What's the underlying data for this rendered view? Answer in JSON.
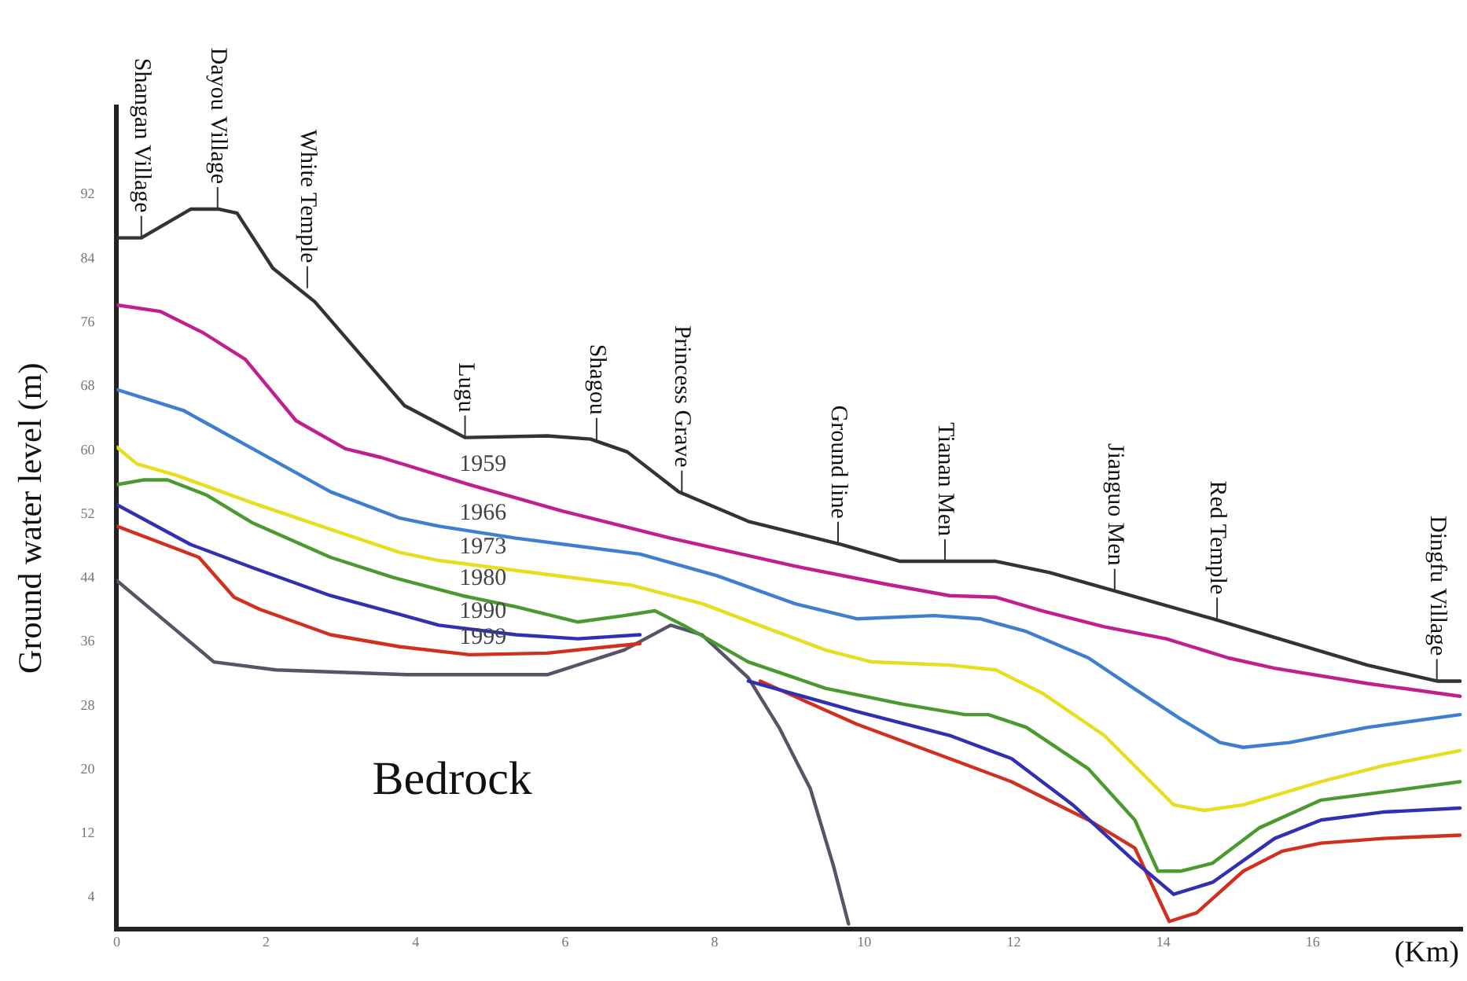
{
  "chart_data": {
    "type": "line",
    "xlabel": "(Km)",
    "ylabel": "Ground water level (m)",
    "xlim": [
      0,
      18
    ],
    "xticks": [
      0,
      2,
      4,
      6,
      8,
      10,
      12,
      14,
      16
    ],
    "ylim": [
      0,
      103
    ],
    "yticks": [
      4,
      12,
      20,
      28,
      36,
      44,
      52,
      60,
      68,
      76,
      84,
      92
    ],
    "grid": false,
    "legend": false,
    "marker": "none",
    "line_style": "solid",
    "series": [
      {
        "color": "#333333",
        "x": [
          0,
          0.33,
          0.99,
          1.37,
          1.61,
          2.09,
          2.65,
          3.85,
          4.66,
          5.76,
          6.34,
          6.83,
          7.52,
          8.45,
          9.69,
          10.48,
          11.76,
          12.48,
          13.42,
          14.66,
          15.69,
          16.73,
          17.66,
          17.97
        ],
        "values": [
          86.6,
          86.6,
          90.2,
          90.2,
          89.7,
          82.8,
          78.6,
          65.6,
          61.6,
          61.8,
          61.4,
          59.8,
          54.8,
          51.1,
          48.2,
          46.1,
          46.1,
          44.7,
          42.2,
          38.9,
          36.0,
          33.1,
          31.1,
          31.1
        ]
      },
      {
        "name": "1959",
        "color": "#c0208f",
        "x": [
          0,
          0.58,
          1.16,
          1.72,
          2.4,
          3.06,
          3.54,
          4.72,
          5.96,
          7.41,
          9.07,
          10.31,
          11.14,
          11.76,
          12.38,
          13.21,
          14.04,
          14.87,
          15.49,
          16.73,
          17.97
        ],
        "values": [
          78.2,
          77.4,
          74.7,
          71.4,
          63.7,
          60.2,
          59.1,
          55.7,
          52.4,
          49.0,
          45.5,
          43.2,
          41.8,
          41.6,
          39.9,
          37.9,
          36.4,
          34.0,
          32.7,
          30.8,
          29.2
        ]
      },
      {
        "name": "1966",
        "color": "#3f7fd0",
        "x": [
          0,
          0.89,
          1.82,
          2.86,
          3.79,
          4.31,
          5.34,
          7.0,
          8.03,
          9.07,
          9.9,
          10.93,
          11.55,
          12.17,
          13.0,
          13.62,
          14.24,
          14.76,
          15.07,
          15.69,
          16.73,
          17.97
        ],
        "values": [
          67.6,
          65.0,
          60.2,
          54.8,
          51.5,
          50.5,
          49.0,
          47.0,
          44.3,
          40.8,
          38.9,
          39.3,
          38.9,
          37.3,
          34.0,
          30.1,
          26.3,
          23.4,
          22.8,
          23.4,
          25.3,
          26.9
        ]
      },
      {
        "name": "1973",
        "color": "#e6de1e",
        "x": [
          0,
          0.27,
          0.79,
          1.82,
          2.86,
          3.79,
          4.31,
          5.55,
          6.89,
          7.83,
          8.65,
          9.48,
          10.1,
          11.14,
          11.76,
          12.38,
          13.21,
          13.83,
          14.14,
          14.55,
          15.07,
          16.11,
          16.94,
          17.97
        ],
        "values": [
          60.4,
          58.3,
          56.9,
          53.4,
          50.1,
          47.2,
          46.2,
          44.7,
          43.1,
          40.8,
          37.9,
          35.0,
          33.5,
          33.1,
          32.5,
          29.6,
          24.3,
          18.5,
          15.6,
          14.9,
          15.6,
          18.5,
          20.5,
          22.4
        ]
      },
      {
        "name": "1980",
        "color": "#4a9a30",
        "x": [
          0,
          0.37,
          0.68,
          1.2,
          1.82,
          2.86,
          3.69,
          4.62,
          5.34,
          6.17,
          6.79,
          7.2,
          7.62,
          8.45,
          9.48,
          10.52,
          11.35,
          11.66,
          12.17,
          13.0,
          13.62,
          13.93,
          14.24,
          14.66,
          15.28,
          16.11,
          16.94,
          17.97
        ],
        "values": [
          55.7,
          56.3,
          56.3,
          54.4,
          50.9,
          46.6,
          44.1,
          41.8,
          40.4,
          38.5,
          39.3,
          39.9,
          37.9,
          33.5,
          30.2,
          28.2,
          26.9,
          26.9,
          25.3,
          20.1,
          13.7,
          7.3,
          7.3,
          8.3,
          12.7,
          16.2,
          17.2,
          18.5
        ]
      },
      {
        "name": "1990",
        "color": "#3030b0",
        "x": [
          0,
          0.99,
          1.82,
          2.86,
          3.69,
          4.31,
          5.34,
          6.17,
          7.0,
          7.5,
          8.45,
          9.9,
          11.14,
          11.97,
          12.79,
          13.62,
          14.14,
          14.66,
          15.49,
          16.11,
          16.94,
          17.97
        ],
        "values": [
          53.2,
          48.2,
          45.3,
          41.8,
          39.7,
          38.1,
          36.9,
          36.4,
          36.9,
          null,
          31.1,
          27.3,
          24.3,
          21.4,
          15.6,
          8.5,
          4.4,
          5.9,
          11.4,
          13.7,
          14.7,
          15.2
        ]
      },
      {
        "name": "1999",
        "color": "#d03020",
        "x": [
          0,
          1.1,
          1.57,
          1.91,
          2.86,
          3.79,
          4.72,
          5.76,
          6.58,
          7.0,
          7.8,
          8.61,
          9.9,
          11.14,
          11.97,
          13.0,
          13.62,
          14.08,
          14.45,
          15.07,
          15.59,
          16.11,
          16.94,
          17.97
        ],
        "values": [
          50.5,
          46.6,
          41.6,
          40.1,
          36.9,
          35.4,
          34.4,
          34.6,
          35.4,
          35.8,
          null,
          31.1,
          25.7,
          21.4,
          18.5,
          13.7,
          10.2,
          1,
          2.1,
          7.3,
          9.8,
          10.8,
          11.4,
          11.8
        ]
      },
      {
        "color": "#555566",
        "x": [
          0,
          0.79,
          1.3,
          2.13,
          3.89,
          5.76,
          6.79,
          7.41,
          7.83,
          8.45,
          8.86,
          9.28,
          9.59,
          9.79
        ],
        "values": [
          43.7,
          37.5,
          33.5,
          32.5,
          31.9,
          31.9,
          35.0,
          38.1,
          36.9,
          31.5,
          25.3,
          17.6,
          7.9,
          0.7
        ]
      }
    ],
    "annotations": [
      {
        "text": "Shangan Village",
        "x": 0.33,
        "y": 86.6
      },
      {
        "text": "Dayou Village",
        "x": 1.35,
        "y": 90.2
      },
      {
        "text": "White Temple",
        "x": 2.55,
        "y": 80.3
      },
      {
        "text": "Lugu",
        "x": 4.66,
        "y": 61.6
      },
      {
        "text": "Shagou",
        "x": 6.42,
        "y": 61.3
      },
      {
        "text": "Princess Grave",
        "x": 7.56,
        "y": 54.7
      },
      {
        "text": "Ground line",
        "x": 9.65,
        "y": 48.3
      },
      {
        "text": "Tianan Men",
        "x": 11.08,
        "y": 46.1
      },
      {
        "text": "Jianguo Men",
        "x": 13.35,
        "y": 42.4
      },
      {
        "text": "Red Temple",
        "x": 14.72,
        "y": 38.8
      },
      {
        "text": "Dingfu Village",
        "x": 17.66,
        "y": 31.1
      },
      "Bedrock"
    ]
  }
}
